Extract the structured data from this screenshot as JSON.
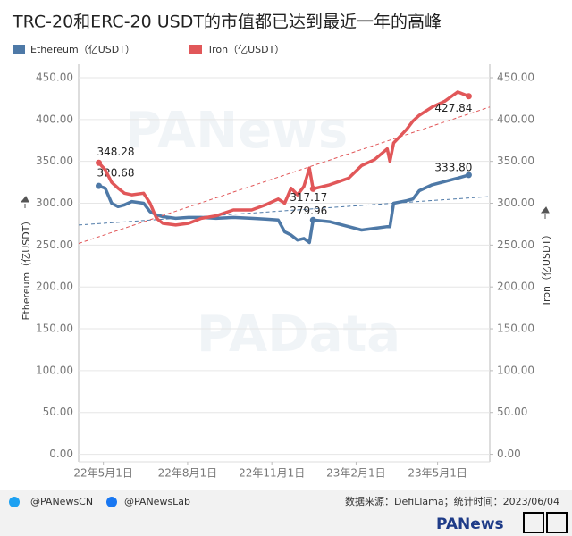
{
  "chart_data": {
    "type": "line",
    "title": "TRC-20和ERC-20 USDT的市值都已达到最近一年的高峰",
    "watermarks": [
      "PANews",
      "PAData"
    ],
    "y_label": "Ethereum（亿USDT）",
    "y2_label": "Tron（亿USDT）",
    "x": [
      "2022-04-26",
      "2022-05-03",
      "2022-05-10",
      "2022-05-17",
      "2022-05-24",
      "2022-06-01",
      "2022-06-14",
      "2022-06-21",
      "2022-06-28",
      "2022-07-05",
      "2022-07-19",
      "2022-08-02",
      "2022-08-16",
      "2022-09-01",
      "2022-09-20",
      "2022-10-10",
      "2022-10-25",
      "2022-11-08",
      "2022-11-15",
      "2022-11-22",
      "2022-11-29",
      "2022-12-06",
      "2022-12-12",
      "2022-12-16",
      "2023-01-03",
      "2023-01-24",
      "2023-02-07",
      "2023-02-21",
      "2023-03-07",
      "2023-03-10",
      "2023-03-14",
      "2023-03-28",
      "2023-04-04",
      "2023-04-11",
      "2023-04-25",
      "2023-05-09",
      "2023-05-23",
      "2023-06-04"
    ],
    "xlim": [
      "2022-04-04",
      "2023-06-27"
    ],
    "xticks": [
      {
        "value": "2022-05-01",
        "label": "22年5月1日"
      },
      {
        "value": "2022-08-01",
        "label": "22年8月1日"
      },
      {
        "value": "2022-11-01",
        "label": "22年11月1日"
      },
      {
        "value": "2023-02-01",
        "label": "23年2月1日"
      },
      {
        "value": "2023-05-01",
        "label": "23年5月1日"
      }
    ],
    "ylim": [
      -9,
      466
    ],
    "y2lim": [
      -9,
      466
    ],
    "yticks": [
      {
        "value": 0,
        "label": "0.00"
      },
      {
        "value": 50,
        "label": "50.00"
      },
      {
        "value": 100,
        "label": "100.00"
      },
      {
        "value": 150,
        "label": "150.00"
      },
      {
        "value": 200,
        "label": "200.00"
      },
      {
        "value": 250,
        "label": "250.00"
      },
      {
        "value": 300,
        "label": "300.00"
      },
      {
        "value": 350,
        "label": "350.00"
      },
      {
        "value": 400,
        "label": "400.00"
      },
      {
        "value": 450,
        "label": "450.00"
      }
    ],
    "y2ticks": [
      {
        "value": 0,
        "label": "0.00"
      },
      {
        "value": 50,
        "label": "50.00"
      },
      {
        "value": 100,
        "label": "100.00"
      },
      {
        "value": 150,
        "label": "150.00"
      },
      {
        "value": 200,
        "label": "200.00"
      },
      {
        "value": 250,
        "label": "250.00"
      },
      {
        "value": 300,
        "label": "300.00"
      },
      {
        "value": 350,
        "label": "350.00"
      },
      {
        "value": 400,
        "label": "400.00"
      },
      {
        "value": 450,
        "label": "450.00"
      }
    ],
    "series": [
      {
        "name": "Ethereum（亿USDT）",
        "color": "#4e79a7",
        "axis": "y",
        "trend": [
          274,
          308
        ],
        "values": [
          320.68,
          318,
          300,
          296,
          298,
          302,
          300,
          290,
          286,
          284,
          282,
          283,
          283,
          282,
          283,
          282,
          281,
          280,
          266,
          262,
          256,
          258,
          253,
          279.96,
          278,
          272,
          268,
          270,
          272,
          272,
          300,
          303,
          305,
          315,
          322,
          326,
          330,
          333.8
        ],
        "value_labels": [
          "320.68",
          null,
          null,
          null,
          null,
          null,
          null,
          null,
          null,
          null,
          null,
          null,
          null,
          null,
          null,
          null,
          null,
          null,
          null,
          null,
          null,
          null,
          null,
          "279.96",
          null,
          null,
          null,
          null,
          null,
          null,
          null,
          null,
          null,
          null,
          null,
          null,
          null,
          "333.80"
        ]
      },
      {
        "name": "Tron（亿USDT）",
        "color": "#e15759",
        "axis": "y2",
        "trend": [
          252,
          415
        ],
        "values": [
          348.28,
          340,
          325,
          318,
          312,
          310,
          312,
          300,
          282,
          276,
          274,
          276,
          282,
          285,
          292,
          292,
          298,
          305,
          300,
          318,
          310,
          320,
          342,
          317.17,
          322,
          330,
          345,
          352,
          365,
          350,
          372,
          388,
          398,
          405,
          415,
          422,
          433,
          427.84
        ],
        "value_labels": [
          "348.28",
          null,
          null,
          null,
          null,
          null,
          null,
          null,
          null,
          null,
          null,
          null,
          null,
          null,
          null,
          null,
          null,
          null,
          null,
          null,
          null,
          null,
          null,
          "317.17",
          null,
          null,
          null,
          null,
          null,
          null,
          null,
          null,
          null,
          null,
          null,
          null,
          null,
          "427.84"
        ]
      }
    ]
  },
  "footer": {
    "twitter": "@PANewsCN",
    "facebook": "@PANewsLab",
    "source": "数据来源：DefiLlama；统计时间：2023/06/04",
    "logo": "PANews"
  }
}
